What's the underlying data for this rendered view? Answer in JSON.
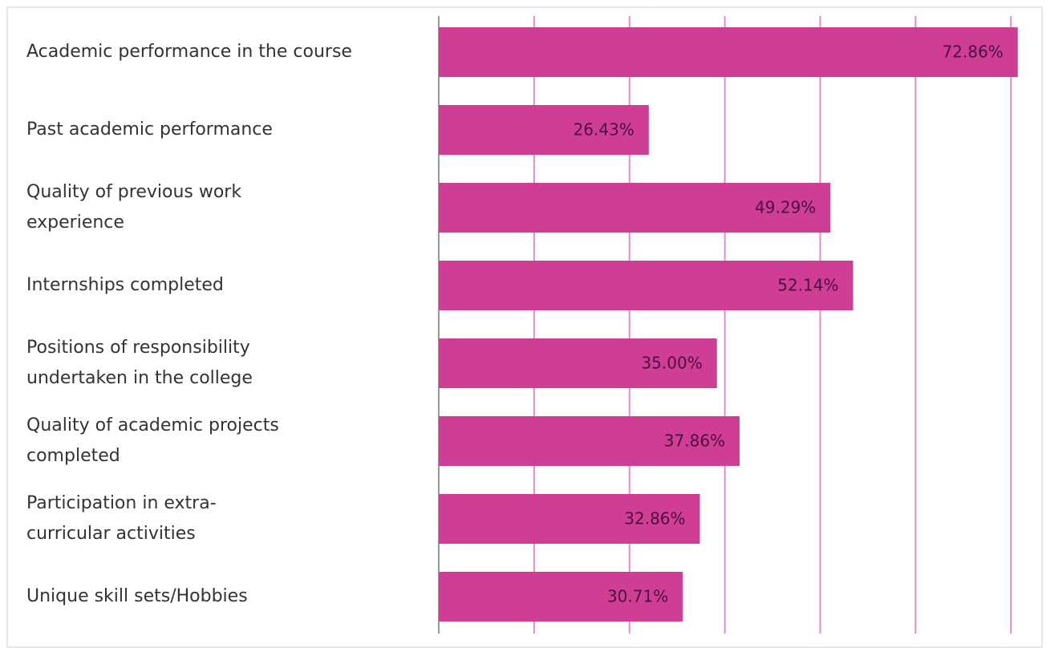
{
  "chart_data": {
    "type": "barh",
    "categories": [
      "Academic performance in the course",
      "Past academic performance",
      "Quality of previous work experience",
      "Internships completed",
      "Positions of responsibility undertaken in the college",
      "Quality of academic projects completed",
      "Participation in extra-curricular activities",
      "Unique skill sets/Hobbies"
    ],
    "values": [
      72.86,
      26.43,
      49.29,
      52.14,
      35.0,
      37.86,
      32.86,
      30.71
    ],
    "value_labels": [
      "72.86%",
      "26.43%",
      "49.29%",
      "52.14%",
      "35.00%",
      "37.86%",
      "32.86%",
      "30.71%"
    ],
    "color": "#d03d94",
    "xlim": [
      0,
      75
    ],
    "xticks": [
      0,
      12,
      24,
      36,
      48,
      60,
      72
    ],
    "grid": true
  }
}
